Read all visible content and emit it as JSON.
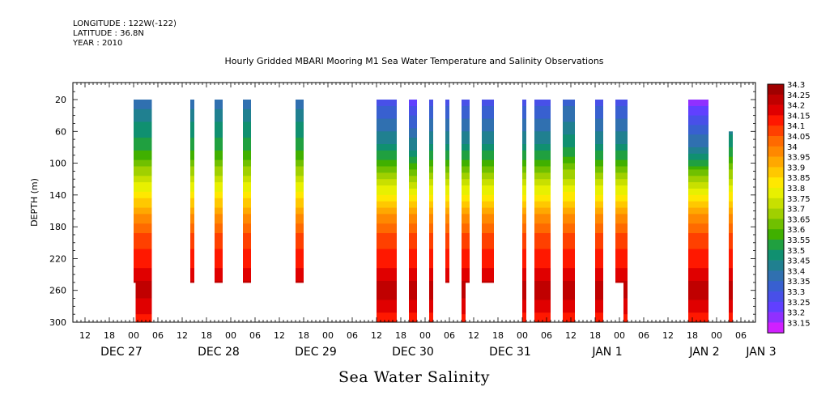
{
  "header": {
    "longitude": "LONGITUDE : 122W(-122)",
    "latitude": "LATITUDE : 36.8N",
    "year": "YEAR : 2010"
  },
  "title": "Hourly Gridded MBARI Mooring M1 Sea Water Temperature and Salinity Observations",
  "variable_label": "Sea Water Salinity",
  "chart_data": {
    "type": "heatmap",
    "title": "Hourly Gridded MBARI Mooring M1 Sea Water Temperature and Salinity Observations",
    "xlabel": "Sea Water Salinity",
    "ylabel": "DEPTH (m)",
    "x_units": "hours from Dec 27 2010 00:00",
    "xlim": [
      -7,
      163
    ],
    "ylim": [
      300,
      0
    ],
    "y_ticks": [
      20,
      60,
      100,
      140,
      180,
      220,
      260,
      300
    ],
    "x_hour_ticks": [
      {
        "h": -6,
        "label": "18"
      },
      {
        "h": 0,
        "label": "00"
      },
      {
        "h": 6,
        "label": "06"
      },
      {
        "h": 12,
        "label": "12"
      },
      {
        "h": 18,
        "label": "18"
      },
      {
        "h": 24,
        "label": "00"
      },
      {
        "h": 30,
        "label": "06"
      },
      {
        "h": 36,
        "label": "12"
      },
      {
        "h": 42,
        "label": "18"
      },
      {
        "h": 48,
        "label": "00"
      },
      {
        "h": 54,
        "label": "06"
      },
      {
        "h": 60,
        "label": "12"
      },
      {
        "h": 66,
        "label": "18"
      },
      {
        "h": 72,
        "label": "00"
      },
      {
        "h": 78,
        "label": "06"
      },
      {
        "h": 84,
        "label": "12"
      },
      {
        "h": 90,
        "label": "18"
      },
      {
        "h": 96,
        "label": "00"
      },
      {
        "h": 102,
        "label": "06"
      },
      {
        "h": 108,
        "label": "12"
      },
      {
        "h": 114,
        "label": "18"
      },
      {
        "h": 120,
        "label": "00"
      },
      {
        "h": 126,
        "label": "06"
      },
      {
        "h": 132,
        "label": "12"
      },
      {
        "h": 138,
        "label": "18"
      },
      {
        "h": 144,
        "label": "00"
      },
      {
        "h": 150,
        "label": "06"
      },
      {
        "h": 156,
        "label": "12"
      },
      {
        "h": 162,
        "label": "18"
      }
    ],
    "x_hour_ticks_first_label": "12",
    "x_date_labels": [
      {
        "h": -3,
        "label": "DEC 27"
      },
      {
        "h": 21,
        "label": "DEC 28"
      },
      {
        "h": 45,
        "label": "DEC 29"
      },
      {
        "h": 69,
        "label": "DEC 30"
      },
      {
        "h": 93,
        "label": "DEC 31"
      },
      {
        "h": 117,
        "label": "JAN  1"
      },
      {
        "h": 141,
        "label": "JAN  2"
      },
      {
        "h": 155,
        "label": "JAN  3"
      }
    ],
    "colorbar_levels": [
      "34.3",
      "34.25",
      "34.2",
      "34.15",
      "34.1",
      "34.05",
      "34",
      "33.95",
      "33.9",
      "33.85",
      "33.8",
      "33.75",
      "33.7",
      "33.65",
      "33.6",
      "33.55",
      "33.5",
      "33.45",
      "33.4",
      "33.35",
      "33.3",
      "33.25",
      "33.2",
      "33.15"
    ],
    "colorbar_colors": [
      "#a00000",
      "#c00000",
      "#e00000",
      "#ff1800",
      "#ff4000",
      "#ff6a00",
      "#ff8800",
      "#ffa800",
      "#ffc800",
      "#ffe800",
      "#e8f000",
      "#c8e000",
      "#a0d000",
      "#70c000",
      "#40b000",
      "#20a040",
      "#109070",
      "#208090",
      "#3070b0",
      "#3860d0",
      "#4850e8",
      "#6040ff",
      "#9030ff",
      "#d020ff"
    ],
    "salinity_profile": [
      {
        "depth": 20,
        "salinity": 33.4
      },
      {
        "depth": 40,
        "salinity": 33.45
      },
      {
        "depth": 60,
        "salinity": 33.5
      },
      {
        "depth": 80,
        "salinity": 33.55
      },
      {
        "depth": 100,
        "salinity": 33.65
      },
      {
        "depth": 120,
        "salinity": 33.75
      },
      {
        "depth": 140,
        "salinity": 33.85
      },
      {
        "depth": 160,
        "salinity": 33.95
      },
      {
        "depth": 180,
        "salinity": 34.05
      },
      {
        "depth": 200,
        "salinity": 34.1
      },
      {
        "depth": 220,
        "salinity": 34.15
      },
      {
        "depth": 240,
        "salinity": 34.2
      },
      {
        "depth": 260,
        "salinity": 34.25
      },
      {
        "depth": 280,
        "salinity": 34.2
      },
      {
        "depth": 300,
        "salinity": 34.15
      }
    ],
    "observation_blocks": [
      {
        "start_h": 0,
        "end_h": 4.5,
        "depth_min": 20,
        "depth_max": 250,
        "surface_salinity": 33.4
      },
      {
        "start_h": 0.5,
        "end_h": 4.5,
        "depth_min": 250,
        "depth_max": 300,
        "surface_salinity": 33.4
      },
      {
        "start_h": 14,
        "end_h": 15,
        "depth_min": 20,
        "depth_max": 250,
        "surface_salinity": 33.4
      },
      {
        "start_h": 20,
        "end_h": 22,
        "depth_min": 20,
        "depth_max": 250,
        "surface_salinity": 33.4
      },
      {
        "start_h": 27,
        "end_h": 29,
        "depth_min": 20,
        "depth_max": 250,
        "surface_salinity": 33.4
      },
      {
        "start_h": 40,
        "end_h": 42,
        "depth_min": 20,
        "depth_max": 250,
        "surface_salinity": 33.4
      },
      {
        "start_h": 60,
        "end_h": 65,
        "depth_min": 20,
        "depth_max": 300,
        "surface_salinity": 33.3
      },
      {
        "start_h": 68,
        "end_h": 70,
        "depth_min": 20,
        "depth_max": 300,
        "surface_salinity": 33.25
      },
      {
        "start_h": 73,
        "end_h": 74,
        "depth_min": 20,
        "depth_max": 300,
        "surface_salinity": 33.3
      },
      {
        "start_h": 77,
        "end_h": 78,
        "depth_min": 20,
        "depth_max": 250,
        "surface_salinity": 33.3
      },
      {
        "start_h": 81,
        "end_h": 83,
        "depth_min": 20,
        "depth_max": 250,
        "surface_salinity": 33.3
      },
      {
        "start_h": 81,
        "end_h": 82,
        "depth_min": 250,
        "depth_max": 300,
        "surface_salinity": 33.3
      },
      {
        "start_h": 86,
        "end_h": 89,
        "depth_min": 20,
        "depth_max": 250,
        "surface_salinity": 33.3
      },
      {
        "start_h": 96,
        "end_h": 97,
        "depth_min": 20,
        "depth_max": 300,
        "surface_salinity": 33.3
      },
      {
        "start_h": 99,
        "end_h": 103,
        "depth_min": 20,
        "depth_max": 300,
        "surface_salinity": 33.3
      },
      {
        "start_h": 106,
        "end_h": 109,
        "depth_min": 20,
        "depth_max": 300,
        "surface_salinity": 33.35
      },
      {
        "start_h": 114,
        "end_h": 116,
        "depth_min": 20,
        "depth_max": 300,
        "surface_salinity": 33.3
      },
      {
        "start_h": 119,
        "end_h": 122,
        "depth_min": 20,
        "depth_max": 250,
        "surface_salinity": 33.3
      },
      {
        "start_h": 121,
        "end_h": 122,
        "depth_min": 250,
        "depth_max": 300,
        "surface_salinity": 33.3
      },
      {
        "start_h": 137,
        "end_h": 142,
        "depth_min": 20,
        "depth_max": 300,
        "surface_salinity": 33.2
      },
      {
        "start_h": 147,
        "end_h": 148,
        "depth_min": 60,
        "depth_max": 300,
        "surface_salinity": 33.35
      }
    ]
  }
}
